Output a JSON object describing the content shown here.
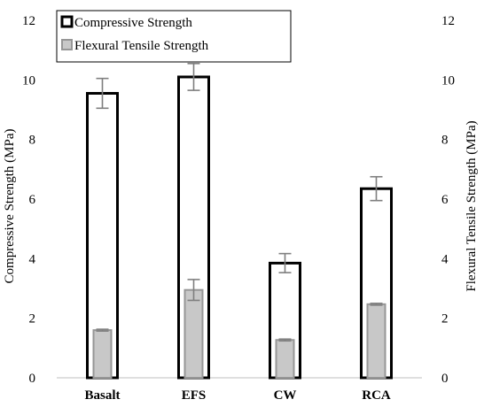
{
  "chart_data": {
    "type": "bar",
    "categories": [
      "Basalt",
      "EFS",
      "CW",
      "RCA"
    ],
    "series": [
      {
        "name": "Compressive Strength",
        "axis": "left",
        "values": [
          9.55,
          10.1,
          3.85,
          6.35
        ],
        "errors": [
          0.5,
          0.45,
          0.32,
          0.4
        ],
        "fill": "#ffffff",
        "stroke": "#000000"
      },
      {
        "name": "Flexural Tensile Strength",
        "axis": "right",
        "values": [
          1.6,
          2.95,
          1.27,
          2.47
        ],
        "errors": [
          0.03,
          0.35,
          0.03,
          0.03
        ],
        "fill": "#c8c8c8",
        "stroke": "#969696"
      }
    ],
    "ylabel": "Compressive Strength (MPa)",
    "y2label": "Flexural Tensile Strength (MPa)",
    "ylim": [
      0,
      12
    ],
    "y2lim": [
      0,
      12
    ],
    "yticks": [
      0,
      2,
      4,
      6,
      8,
      10,
      12
    ],
    "y2ticks": [
      0,
      2,
      4,
      6,
      8,
      10,
      12
    ],
    "grid": false,
    "legend": "top-center",
    "error_bar_color": "#7f7f7f"
  }
}
